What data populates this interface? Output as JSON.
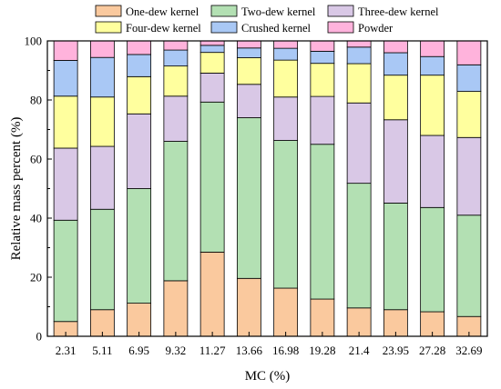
{
  "chart_data": {
    "type": "bar",
    "stacked": true,
    "xlabel": "MC (%)",
    "ylabel": "Relative mass percent (%)",
    "ylim": [
      0,
      100
    ],
    "yticks": [
      0,
      20,
      40,
      60,
      80,
      100
    ],
    "grid": false,
    "legend_position": "top",
    "categories": [
      "2.31",
      "5.11",
      "6.95",
      "9.32",
      "11.27",
      "13.66",
      "16.98",
      "19.28",
      "21.4",
      "23.95",
      "27.28",
      "32.69"
    ],
    "series": [
      {
        "name": "One-dew kernel",
        "color": "#FAC99E",
        "values": [
          5.0,
          9.0,
          11.2,
          18.8,
          28.5,
          19.6,
          16.3,
          12.6,
          9.6,
          9.0,
          8.3,
          6.7
        ]
      },
      {
        "name": "Two-dew kernel",
        "color": "#B3E0B3",
        "values": [
          34.3,
          34.0,
          38.8,
          47.2,
          50.8,
          54.4,
          50.0,
          52.4,
          42.2,
          36.1,
          35.3,
          34.3
        ]
      },
      {
        "name": "Three-dew kernel",
        "color": "#D9C8E6",
        "values": [
          24.4,
          21.3,
          25.3,
          15.3,
          9.8,
          11.3,
          14.7,
          16.2,
          27.2,
          28.2,
          24.4,
          26.3
        ]
      },
      {
        "name": "Four-dew kernel",
        "color": "#FFFF9E",
        "values": [
          17.6,
          16.7,
          12.6,
          10.2,
          7.0,
          9.0,
          12.5,
          11.2,
          13.3,
          15.1,
          20.4,
          15.6
        ]
      },
      {
        "name": "Crushed kernel",
        "color": "#A9C8F5",
        "values": [
          12.1,
          13.4,
          7.5,
          5.4,
          2.4,
          3.3,
          4.0,
          4.1,
          5.6,
          7.6,
          6.3,
          9.0
        ]
      },
      {
        "name": "Powder",
        "color": "#FFB3DC",
        "values": [
          6.6,
          5.6,
          4.6,
          3.1,
          1.5,
          2.4,
          2.5,
          3.5,
          2.1,
          4.0,
          5.3,
          8.1
        ]
      }
    ]
  }
}
